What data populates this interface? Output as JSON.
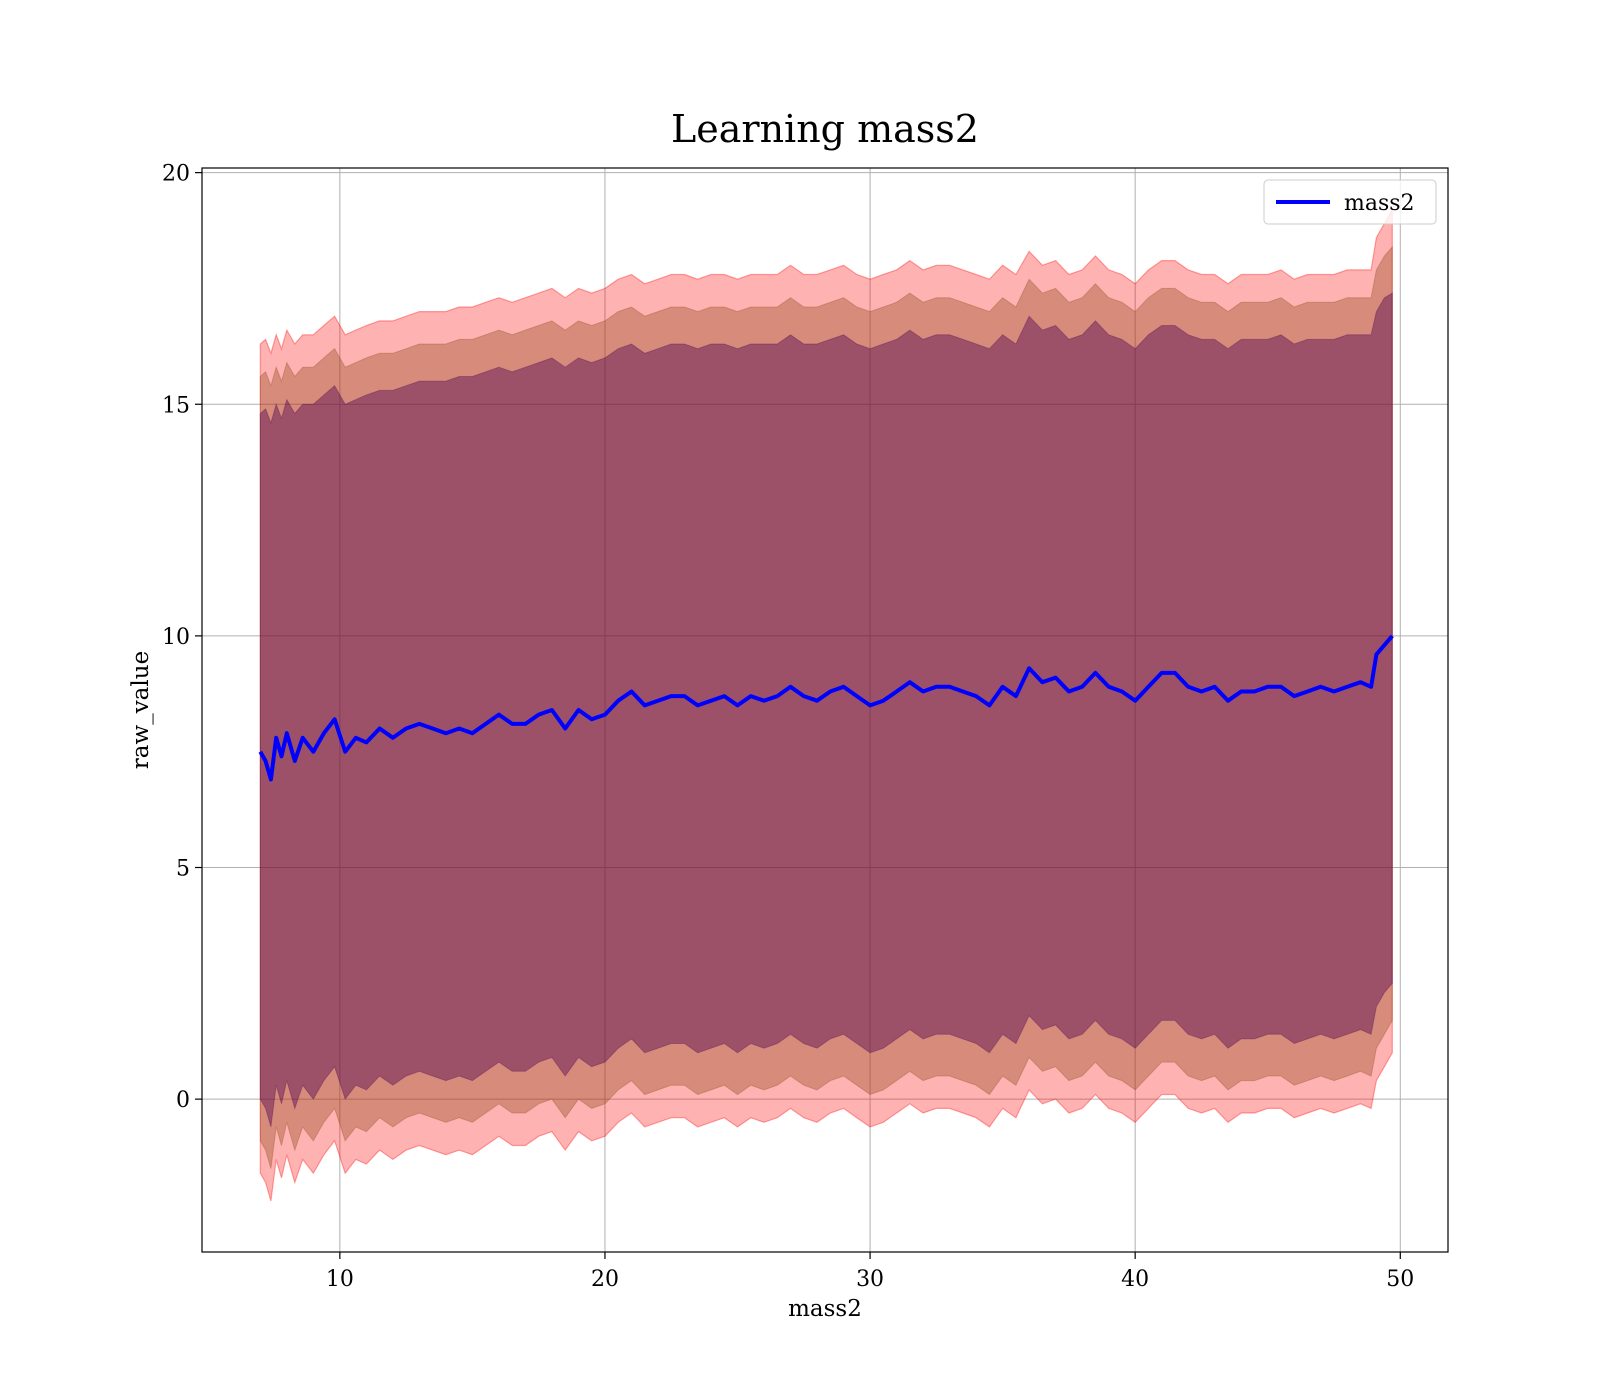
{
  "chart_data": {
    "type": "line",
    "title": "Learning mass2",
    "xlabel": "mass2",
    "ylabel": "raw_value",
    "xlim": [
      4.8,
      51.8
    ],
    "ylim": [
      -3.3,
      20.1
    ],
    "xticks": [
      10,
      20,
      30,
      40,
      50
    ],
    "yticks": [
      0,
      5,
      10,
      15,
      20
    ],
    "grid": true,
    "legend": {
      "position": "top-right",
      "entries": [
        "mass2"
      ]
    },
    "colors": {
      "line": "#0000ff",
      "outer_band": "#ff0000",
      "middle_band": "#8b4513",
      "inner_band": "#4b0050"
    },
    "series": [
      {
        "name": "mass2",
        "x": [
          7.0,
          7.2,
          7.4,
          7.6,
          7.8,
          8.0,
          8.3,
          8.6,
          9.0,
          9.4,
          9.8,
          10.2,
          10.6,
          11.0,
          11.5,
          12.0,
          12.5,
          13.0,
          13.5,
          14.0,
          14.5,
          15.0,
          15.5,
          16.0,
          16.5,
          17.0,
          17.5,
          18.0,
          18.5,
          19.0,
          19.5,
          20.0,
          20.5,
          21.0,
          21.5,
          22.0,
          22.5,
          23.0,
          23.5,
          24.0,
          24.5,
          25.0,
          25.5,
          26.0,
          26.5,
          27.0,
          27.5,
          28.0,
          28.5,
          29.0,
          29.5,
          30.0,
          30.5,
          31.0,
          31.5,
          32.0,
          32.5,
          33.0,
          33.5,
          34.0,
          34.5,
          35.0,
          35.5,
          36.0,
          36.5,
          37.0,
          37.5,
          38.0,
          38.5,
          39.0,
          39.5,
          40.0,
          40.5,
          41.0,
          41.5,
          42.0,
          42.5,
          43.0,
          43.5,
          44.0,
          44.5,
          45.0,
          45.5,
          46.0,
          46.5,
          47.0,
          47.5,
          48.0,
          48.5,
          48.9,
          49.1,
          49.4,
          49.7
        ],
        "y": [
          7.5,
          7.3,
          6.9,
          7.8,
          7.4,
          7.9,
          7.3,
          7.8,
          7.5,
          7.9,
          8.2,
          7.5,
          7.8,
          7.7,
          8.0,
          7.8,
          8.0,
          8.1,
          8.0,
          7.9,
          8.0,
          7.9,
          8.1,
          8.3,
          8.1,
          8.1,
          8.3,
          8.4,
          8.0,
          8.4,
          8.2,
          8.3,
          8.6,
          8.8,
          8.5,
          8.6,
          8.7,
          8.7,
          8.5,
          8.6,
          8.7,
          8.5,
          8.7,
          8.6,
          8.7,
          8.9,
          8.7,
          8.6,
          8.8,
          8.9,
          8.7,
          8.5,
          8.6,
          8.8,
          9.0,
          8.8,
          8.9,
          8.9,
          8.8,
          8.7,
          8.5,
          8.9,
          8.7,
          9.3,
          9.0,
          9.1,
          8.8,
          8.9,
          9.2,
          8.9,
          8.8,
          8.6,
          8.9,
          9.2,
          9.2,
          8.9,
          8.8,
          8.9,
          8.6,
          8.8,
          8.8,
          8.9,
          8.9,
          8.7,
          8.8,
          8.9,
          8.8,
          8.9,
          9.0,
          8.9,
          9.6,
          9.8,
          10.0
        ]
      }
    ],
    "bands": {
      "inner_upper": [
        14.8,
        14.9,
        14.6,
        15.0,
        14.7,
        15.1,
        14.8,
        15.0,
        15.0,
        15.2,
        15.4,
        15.0,
        15.1,
        15.2,
        15.3,
        15.3,
        15.4,
        15.5,
        15.5,
        15.5,
        15.6,
        15.6,
        15.7,
        15.8,
        15.7,
        15.8,
        15.9,
        16.0,
        15.8,
        16.0,
        15.9,
        16.0,
        16.2,
        16.3,
        16.1,
        16.2,
        16.3,
        16.3,
        16.2,
        16.3,
        16.3,
        16.2,
        16.3,
        16.3,
        16.3,
        16.5,
        16.3,
        16.3,
        16.4,
        16.5,
        16.3,
        16.2,
        16.3,
        16.4,
        16.6,
        16.4,
        16.5,
        16.5,
        16.4,
        16.3,
        16.2,
        16.5,
        16.3,
        16.9,
        16.6,
        16.7,
        16.4,
        16.5,
        16.8,
        16.5,
        16.4,
        16.2,
        16.5,
        16.7,
        16.7,
        16.5,
        16.4,
        16.4,
        16.2,
        16.4,
        16.4,
        16.4,
        16.5,
        16.3,
        16.4,
        16.4,
        16.4,
        16.5,
        16.5,
        16.5,
        17.0,
        17.3,
        17.4
      ],
      "middle_upper": [
        15.6,
        15.7,
        15.4,
        15.8,
        15.5,
        15.9,
        15.6,
        15.8,
        15.8,
        16.0,
        16.2,
        15.8,
        15.9,
        16.0,
        16.1,
        16.1,
        16.2,
        16.3,
        16.3,
        16.3,
        16.4,
        16.4,
        16.5,
        16.6,
        16.5,
        16.6,
        16.7,
        16.8,
        16.6,
        16.8,
        16.7,
        16.8,
        17.0,
        17.1,
        16.9,
        17.0,
        17.1,
        17.1,
        17.0,
        17.1,
        17.1,
        17.0,
        17.1,
        17.1,
        17.1,
        17.3,
        17.1,
        17.1,
        17.2,
        17.3,
        17.1,
        17.0,
        17.1,
        17.2,
        17.4,
        17.2,
        17.3,
        17.3,
        17.2,
        17.1,
        17.0,
        17.3,
        17.1,
        17.7,
        17.4,
        17.5,
        17.2,
        17.3,
        17.6,
        17.3,
        17.2,
        17.0,
        17.3,
        17.5,
        17.5,
        17.3,
        17.2,
        17.2,
        17.0,
        17.2,
        17.2,
        17.2,
        17.3,
        17.1,
        17.2,
        17.2,
        17.2,
        17.3,
        17.3,
        17.3,
        17.9,
        18.2,
        18.4
      ],
      "outer_upper": [
        16.3,
        16.4,
        16.1,
        16.5,
        16.2,
        16.6,
        16.3,
        16.5,
        16.5,
        16.7,
        16.9,
        16.5,
        16.6,
        16.7,
        16.8,
        16.8,
        16.9,
        17.0,
        17.0,
        17.0,
        17.1,
        17.1,
        17.2,
        17.3,
        17.2,
        17.3,
        17.4,
        17.5,
        17.3,
        17.5,
        17.4,
        17.5,
        17.7,
        17.8,
        17.6,
        17.7,
        17.8,
        17.8,
        17.7,
        17.8,
        17.8,
        17.7,
        17.8,
        17.8,
        17.8,
        18.0,
        17.8,
        17.8,
        17.9,
        18.0,
        17.8,
        17.7,
        17.8,
        17.9,
        18.1,
        17.9,
        18.0,
        18.0,
        17.9,
        17.8,
        17.7,
        18.0,
        17.8,
        18.3,
        18.0,
        18.1,
        17.8,
        17.9,
        18.2,
        17.9,
        17.8,
        17.6,
        17.9,
        18.1,
        18.1,
        17.9,
        17.8,
        17.8,
        17.6,
        17.8,
        17.8,
        17.8,
        17.9,
        17.7,
        17.8,
        17.8,
        17.8,
        17.9,
        17.9,
        17.9,
        18.6,
        18.9,
        19.2
      ],
      "inner_lower": [
        0.0,
        -0.2,
        -0.6,
        0.3,
        -0.1,
        0.4,
        -0.2,
        0.3,
        0.0,
        0.4,
        0.7,
        0.0,
        0.3,
        0.2,
        0.5,
        0.3,
        0.5,
        0.6,
        0.5,
        0.4,
        0.5,
        0.4,
        0.6,
        0.8,
        0.6,
        0.6,
        0.8,
        0.9,
        0.5,
        0.9,
        0.7,
        0.8,
        1.1,
        1.3,
        1.0,
        1.1,
        1.2,
        1.2,
        1.0,
        1.1,
        1.2,
        1.0,
        1.2,
        1.1,
        1.2,
        1.4,
        1.2,
        1.1,
        1.3,
        1.4,
        1.2,
        1.0,
        1.1,
        1.3,
        1.5,
        1.3,
        1.4,
        1.4,
        1.3,
        1.2,
        1.0,
        1.4,
        1.2,
        1.8,
        1.5,
        1.6,
        1.3,
        1.4,
        1.7,
        1.4,
        1.3,
        1.1,
        1.4,
        1.7,
        1.7,
        1.4,
        1.3,
        1.4,
        1.1,
        1.3,
        1.3,
        1.4,
        1.4,
        1.2,
        1.3,
        1.4,
        1.3,
        1.4,
        1.5,
        1.4,
        2.0,
        2.3,
        2.5
      ],
      "middle_lower": [
        -0.9,
        -1.1,
        -1.5,
        -0.6,
        -1.0,
        -0.5,
        -1.1,
        -0.6,
        -0.9,
        -0.5,
        -0.2,
        -0.9,
        -0.6,
        -0.7,
        -0.4,
        -0.6,
        -0.4,
        -0.3,
        -0.4,
        -0.5,
        -0.4,
        -0.5,
        -0.3,
        -0.1,
        -0.3,
        -0.3,
        -0.1,
        0.0,
        -0.4,
        0.0,
        -0.2,
        -0.1,
        0.2,
        0.4,
        0.1,
        0.2,
        0.3,
        0.3,
        0.1,
        0.2,
        0.3,
        0.1,
        0.3,
        0.2,
        0.3,
        0.5,
        0.3,
        0.2,
        0.4,
        0.5,
        0.3,
        0.1,
        0.2,
        0.4,
        0.6,
        0.4,
        0.5,
        0.5,
        0.4,
        0.3,
        0.1,
        0.5,
        0.3,
        0.9,
        0.6,
        0.7,
        0.4,
        0.5,
        0.8,
        0.5,
        0.4,
        0.2,
        0.5,
        0.8,
        0.8,
        0.5,
        0.4,
        0.5,
        0.2,
        0.4,
        0.4,
        0.5,
        0.5,
        0.3,
        0.4,
        0.5,
        0.4,
        0.5,
        0.6,
        0.5,
        1.1,
        1.4,
        1.7
      ],
      "outer_lower": [
        -1.6,
        -1.8,
        -2.2,
        -1.3,
        -1.7,
        -1.2,
        -1.8,
        -1.3,
        -1.6,
        -1.2,
        -0.9,
        -1.6,
        -1.3,
        -1.4,
        -1.1,
        -1.3,
        -1.1,
        -1.0,
        -1.1,
        -1.2,
        -1.1,
        -1.2,
        -1.0,
        -0.8,
        -1.0,
        -1.0,
        -0.8,
        -0.7,
        -1.1,
        -0.7,
        -0.9,
        -0.8,
        -0.5,
        -0.3,
        -0.6,
        -0.5,
        -0.4,
        -0.4,
        -0.6,
        -0.5,
        -0.4,
        -0.6,
        -0.4,
        -0.5,
        -0.4,
        -0.2,
        -0.4,
        -0.5,
        -0.3,
        -0.2,
        -0.4,
        -0.6,
        -0.5,
        -0.3,
        -0.1,
        -0.3,
        -0.2,
        -0.2,
        -0.3,
        -0.4,
        -0.6,
        -0.2,
        -0.4,
        0.2,
        -0.1,
        0.0,
        -0.3,
        -0.2,
        0.1,
        -0.2,
        -0.3,
        -0.5,
        -0.2,
        0.1,
        0.1,
        -0.2,
        -0.3,
        -0.2,
        -0.5,
        -0.3,
        -0.3,
        -0.2,
        -0.2,
        -0.4,
        -0.3,
        -0.2,
        -0.3,
        -0.2,
        -0.1,
        -0.2,
        0.4,
        0.7,
        1.0
      ]
    }
  }
}
